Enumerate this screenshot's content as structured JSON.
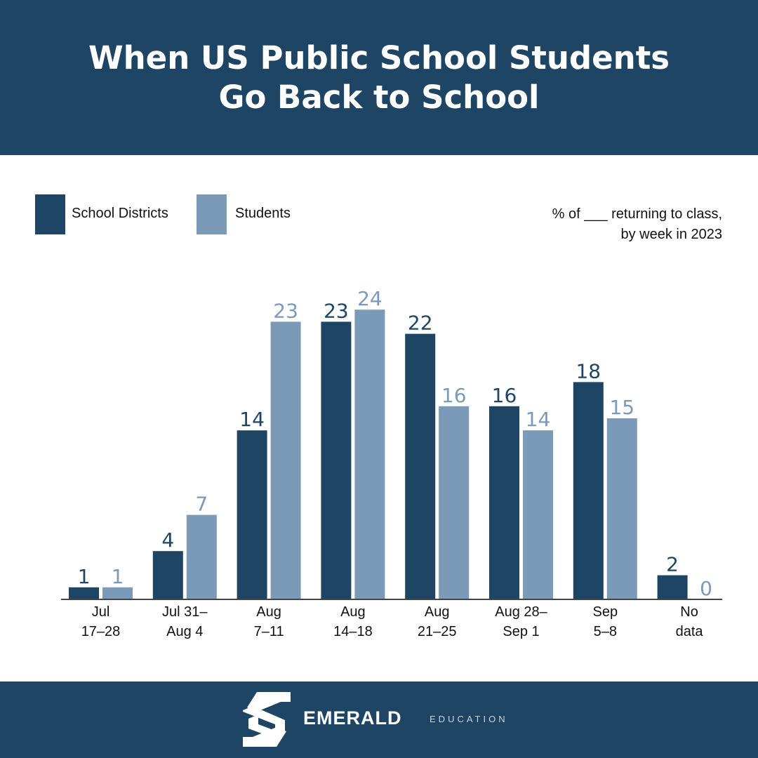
{
  "header": {
    "title": "When US Public School Students\nGo Back to School"
  },
  "note": {
    "line1": "% of ___ returning to class,",
    "line2": "by week in 2023"
  },
  "colors": {
    "header_bg": "#1f4564",
    "school_districts": "#1f4564",
    "students": "#7a9ab8"
  },
  "chart_data": {
    "type": "bar",
    "categories": [
      [
        "Jul",
        "17–28"
      ],
      [
        "Jul 31–",
        "Aug 4"
      ],
      [
        "Aug",
        "7–11"
      ],
      [
        "Aug",
        "14–18"
      ],
      [
        "Aug",
        "21–25"
      ],
      [
        "Aug 28–",
        "Sep 1"
      ],
      [
        "Sep",
        "5–8"
      ],
      [
        "No",
        "data"
      ]
    ],
    "series": [
      {
        "name": "School Districts",
        "values": [
          1,
          4,
          14,
          23,
          22,
          16,
          18,
          2
        ]
      },
      {
        "name": "Students",
        "values": [
          1,
          7,
          23,
          24,
          16,
          14,
          15,
          0
        ]
      }
    ],
    "ylim": [
      0,
      24
    ],
    "legend": "top-left",
    "grid": false,
    "data_labels": true
  },
  "footer": {
    "brand": "EMERALD",
    "brand_sub": "EDUCATION",
    "logo_icon": "emerald-s-logo-icon"
  }
}
